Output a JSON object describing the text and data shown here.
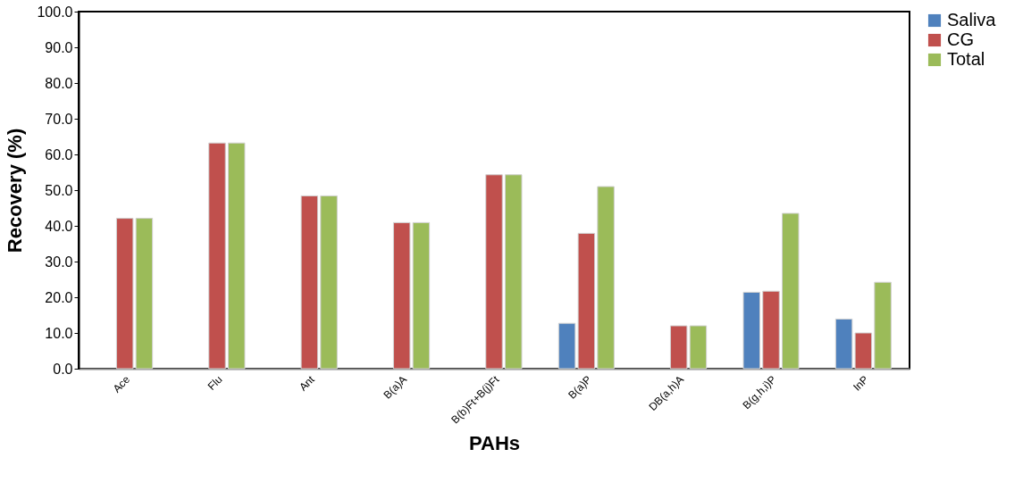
{
  "chart_data": {
    "type": "bar",
    "xlabel": "PAHs",
    "ylabel": "Recovery (%)",
    "categories": [
      "Ace",
      "Flu",
      "Ant",
      "B(a)A",
      "B(b)Ft+B(j)Ft",
      "B(a)P",
      "DB(a,h)A",
      "B(g,h,i)P",
      "InP"
    ],
    "series": [
      {
        "name": "Saliva",
        "color": "#4f81bd",
        "values": [
          null,
          null,
          null,
          null,
          null,
          12.7,
          null,
          21.4,
          13.9
        ]
      },
      {
        "name": "CG",
        "color": "#c0504d",
        "values": [
          42.1,
          63.2,
          48.4,
          40.9,
          54.3,
          37.9,
          12.0,
          21.7,
          10.0
        ]
      },
      {
        "name": "Total",
        "color": "#9bbb59",
        "values": [
          42.1,
          63.2,
          48.4,
          40.9,
          54.3,
          51.0,
          12.0,
          43.5,
          24.2
        ]
      }
    ],
    "ylim": [
      0,
      100
    ],
    "yticks": [
      {
        "value": 0,
        "label": "0.0"
      },
      {
        "value": 10,
        "label": "10.0"
      },
      {
        "value": 20,
        "label": "20.0"
      },
      {
        "value": 30,
        "label": "30.0"
      },
      {
        "value": 40,
        "label": "40.0"
      },
      {
        "value": 50,
        "label": "50.0"
      },
      {
        "value": 60,
        "label": "60.0"
      },
      {
        "value": 70,
        "label": "70.0"
      },
      {
        "value": 80,
        "label": "80.0"
      },
      {
        "value": 90,
        "label": "90.0"
      },
      {
        "value": 100,
        "label": "100.0"
      }
    ],
    "grid": false,
    "legend": "right"
  }
}
